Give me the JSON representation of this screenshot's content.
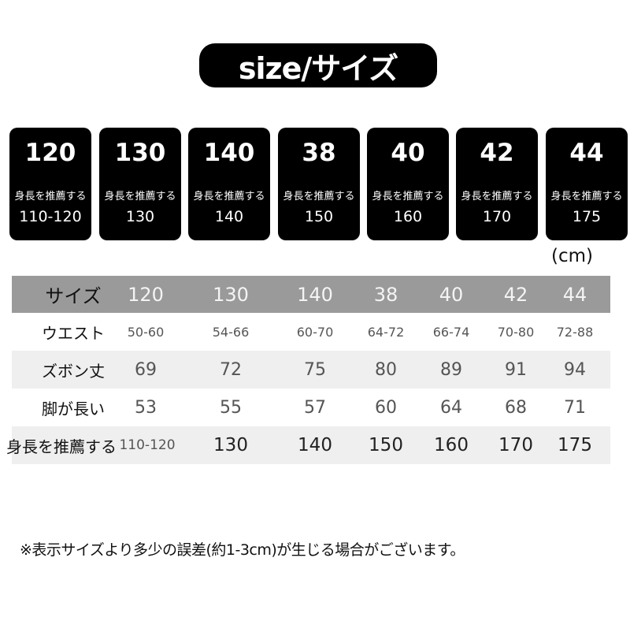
{
  "title": "size/サイズ",
  "cards": [
    {
      "size": "120",
      "label": "身長を推薦する",
      "height": "110-120"
    },
    {
      "size": "130",
      "label": "身長を推薦する",
      "height": "130"
    },
    {
      "size": "140",
      "label": "身長を推薦する",
      "height": "140"
    },
    {
      "size": "38",
      "label": "身長を推薦する",
      "height": "150"
    },
    {
      "size": "40",
      "label": "身長を推薦する",
      "height": "160"
    },
    {
      "size": "42",
      "label": "身長を推薦する",
      "height": "170"
    },
    {
      "size": "44",
      "label": "身長を推薦する",
      "height": "175"
    }
  ],
  "unit": "(cm)",
  "table": {
    "rows": [
      {
        "label": "サイズ",
        "values": [
          "120",
          "130",
          "140",
          "38",
          "40",
          "42",
          "44"
        ]
      },
      {
        "label": "ウエスト",
        "values": [
          "50-60",
          "54-66",
          "60-70",
          "64-72",
          "66-74",
          "70-80",
          "72-88"
        ]
      },
      {
        "label": "ズボン丈",
        "values": [
          "69",
          "72",
          "75",
          "80",
          "89",
          "91",
          "94"
        ]
      },
      {
        "label": "脚が長い",
        "values": [
          "53",
          "55",
          "57",
          "60",
          "64",
          "68",
          "71"
        ]
      },
      {
        "label": "身長を推薦する",
        "values": [
          "110-120",
          "130",
          "140",
          "150",
          "160",
          "170",
          "175"
        ]
      }
    ]
  },
  "note": "※表示サイズより多少の誤差(約1-3cm)が生じる場合がございます。"
}
